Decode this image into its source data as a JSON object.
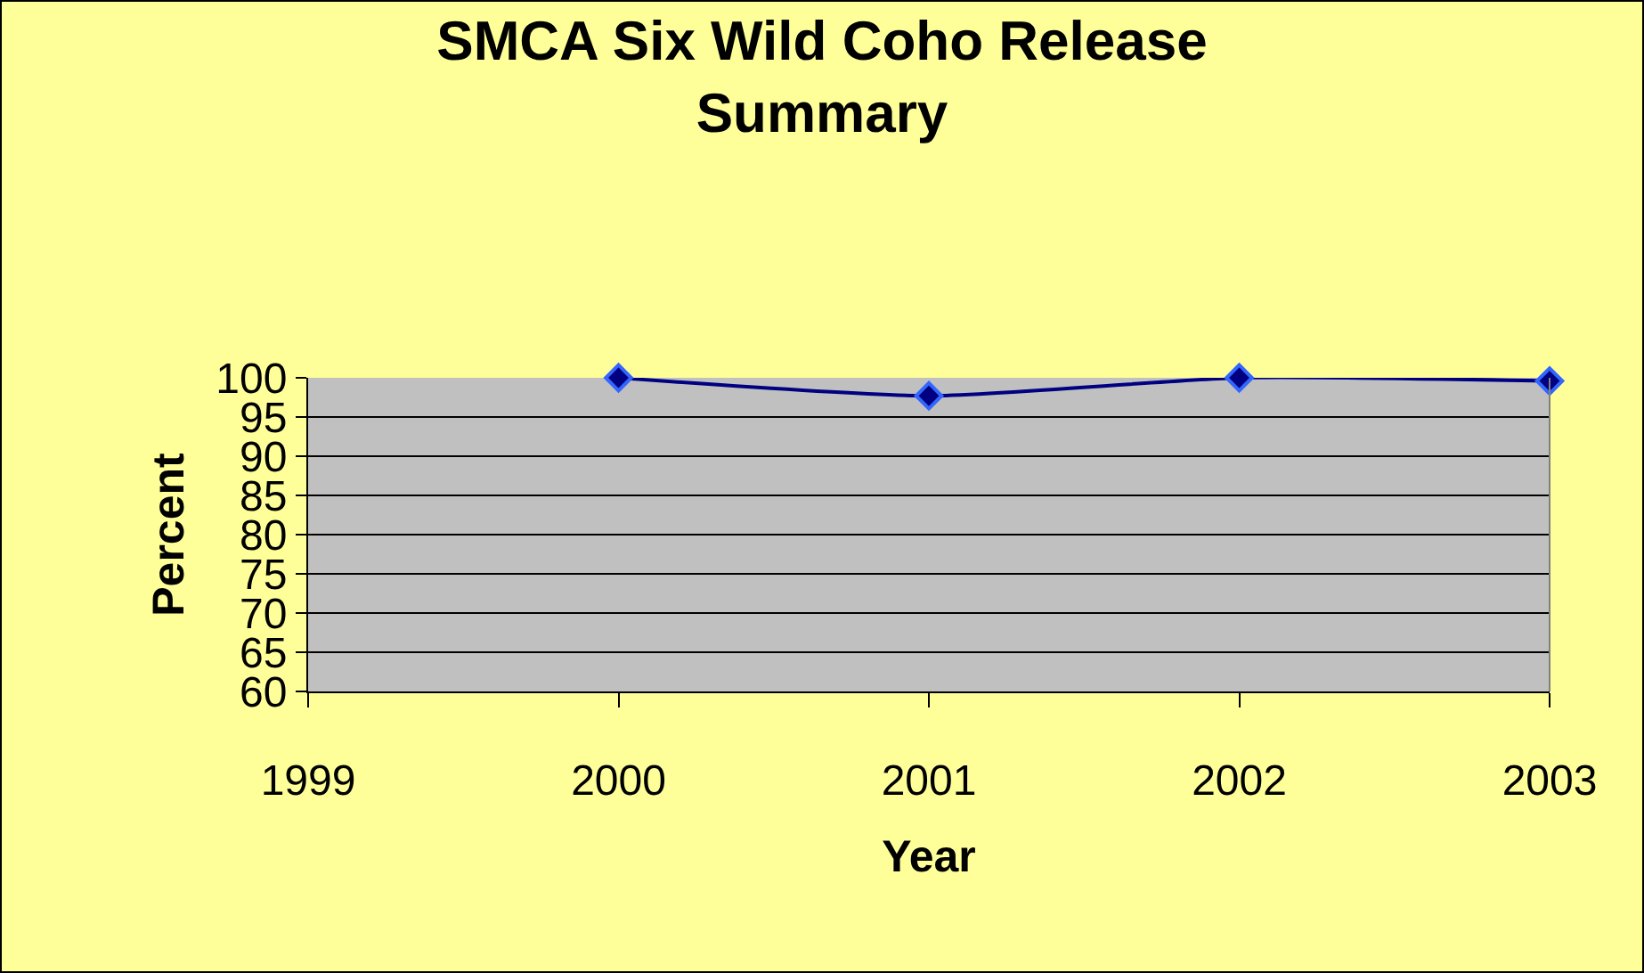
{
  "chart_data": {
    "type": "line",
    "title": "SMCA Six Wild Coho Release Summary",
    "xlabel": "Year",
    "ylabel": "Percent",
    "x": [
      2000,
      2001,
      2002,
      2003
    ],
    "series": [
      {
        "color": "#000080",
        "values": [
          100,
          97.7,
          100,
          99.6
        ]
      }
    ],
    "xlim": [
      1999,
      2003
    ],
    "xticks": [
      1999,
      2000,
      2001,
      2002,
      2003
    ],
    "ylim": [
      60,
      100
    ],
    "yticks": [
      60,
      65,
      70,
      75,
      80,
      85,
      90,
      95,
      100
    ],
    "grid": "y",
    "marker": "diamond",
    "line_style": "solid"
  }
}
